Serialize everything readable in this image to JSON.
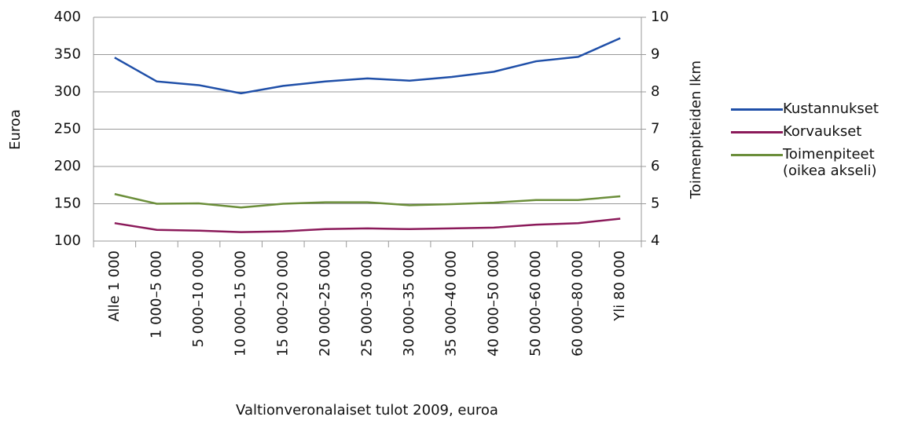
{
  "chart_data": {
    "type": "line",
    "y_label": "Euroa",
    "y2_label": "Toimenpiteiden lkm",
    "x_label": "Valtionveronalaiset tulot 2009, euroa",
    "categories": [
      "Alle 1 000",
      "1 000–5 000",
      "5 000–10 000",
      "10 000–15 000",
      "15 000–20 000",
      "20 000–25 000",
      "25 000–30 000",
      "30 000–35 000",
      "35 000–40 000",
      "40 000–50 000",
      "50 000–60 000",
      "60 000–80 000",
      "Yli 80 000"
    ],
    "series": [
      {
        "name": "Kustannukset",
        "color": "#1f4fa8",
        "values": [
          346,
          314,
          309,
          298,
          308,
          314,
          318,
          315,
          320,
          327,
          341,
          347,
          372
        ]
      },
      {
        "name": "Korvaukset",
        "color": "#8b1a5a",
        "values": [
          124,
          115,
          114,
          112,
          113,
          116,
          117,
          116,
          117,
          118,
          122,
          124,
          130
        ]
      },
      {
        "name": "Toimenpiteet (oikea akseli)",
        "color": "#6b8e3a",
        "axis": "y2",
        "values": [
          5.26,
          5.0,
          5.01,
          4.9,
          5.0,
          5.04,
          5.04,
          4.96,
          4.99,
          5.03,
          5.1,
          5.1,
          5.2
        ]
      }
    ],
    "ylim": [
      100,
      400
    ],
    "yticks": [
      100,
      150,
      200,
      250,
      300,
      350,
      400
    ],
    "y2lim": [
      4,
      10
    ],
    "y2ticks": [
      4,
      5,
      6,
      7,
      8,
      9,
      10
    ],
    "grid": true,
    "legend": "right"
  }
}
